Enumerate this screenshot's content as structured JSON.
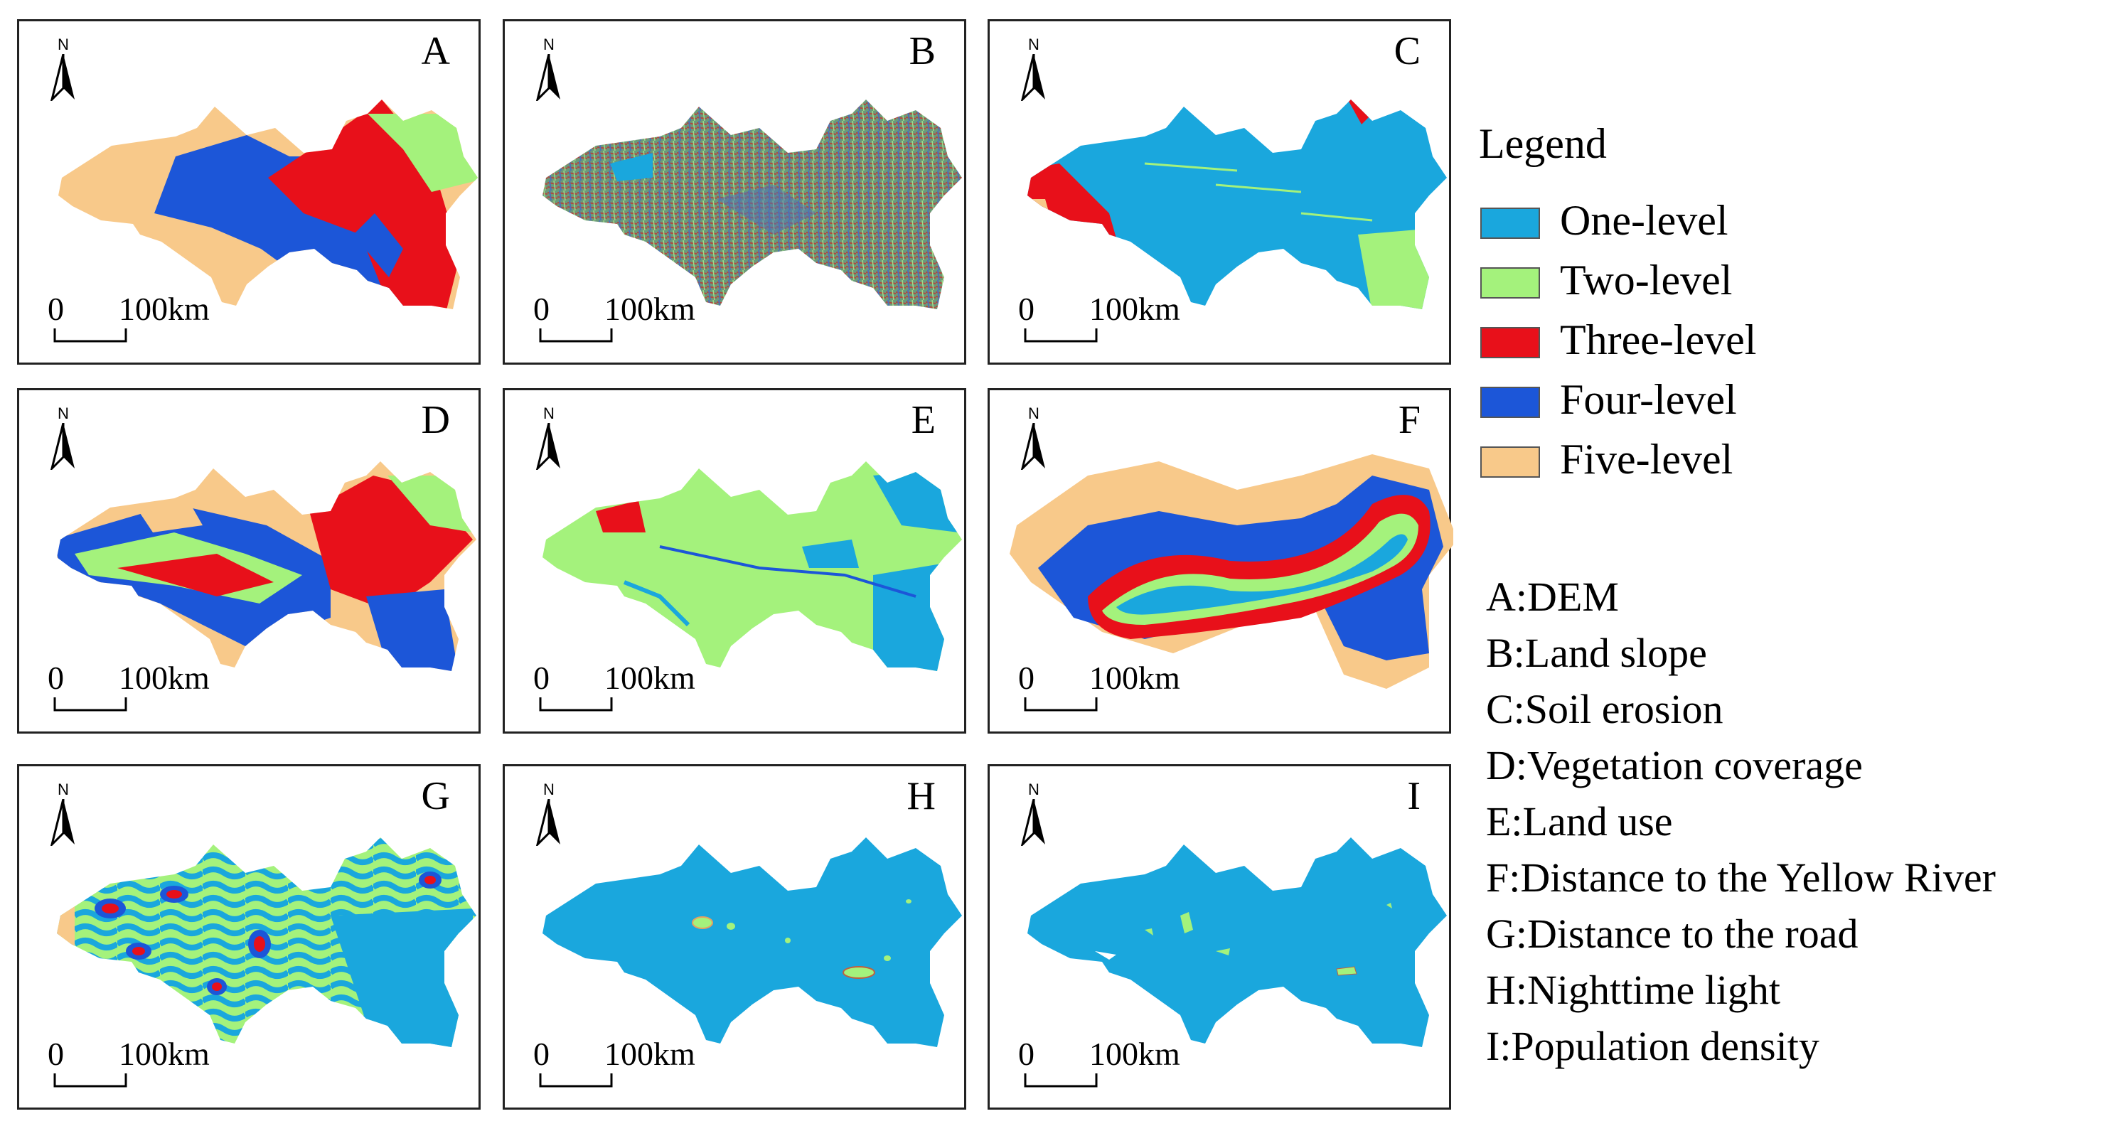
{
  "colors": {
    "one_level": "#1aa7dd",
    "two_level": "#a4f27c",
    "three_level": "#e8101a",
    "four_level": "#1c56d8",
    "five_level": "#f8c98a"
  },
  "north_arrow": {
    "label": "N",
    "icon": "north-arrow-icon"
  },
  "scale_bar": {
    "zero": "0",
    "distance": "100km"
  },
  "panels": [
    {
      "letter": "A"
    },
    {
      "letter": "B"
    },
    {
      "letter": "C"
    },
    {
      "letter": "D"
    },
    {
      "letter": "E"
    },
    {
      "letter": "F"
    },
    {
      "letter": "G"
    },
    {
      "letter": "H"
    },
    {
      "letter": "I"
    }
  ],
  "legend": {
    "title": "Legend",
    "items": [
      {
        "label": "One-level",
        "color": "#1aa7dd"
      },
      {
        "label": "Two-level",
        "color": "#a4f27c"
      },
      {
        "label": "Three-level",
        "color": "#e8101a"
      },
      {
        "label": "Four-level",
        "color": "#1c56d8"
      },
      {
        "label": "Five-level",
        "color": "#f8c98a"
      }
    ]
  },
  "factor_key": [
    "A:DEM",
    "B:Land slope",
    "C:Soil erosion",
    "D:Vegetation coverage",
    "E:Land use",
    "F:Distance to the Yellow River",
    "G:Distance to the road",
    "H:Nighttime light",
    "I:Population density"
  ]
}
